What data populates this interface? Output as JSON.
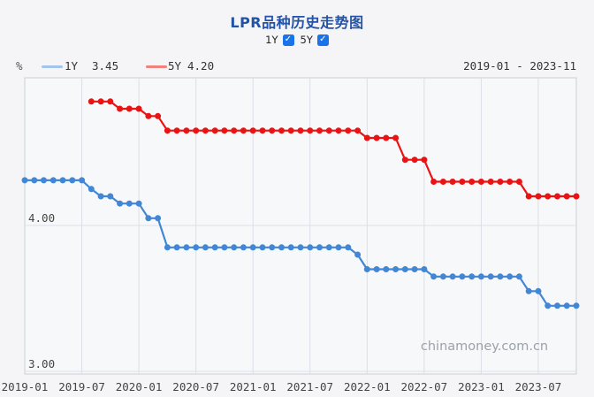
{
  "header": {
    "title": "LPR品种历史走势图",
    "toggles": [
      {
        "label": "1Y",
        "checked": true
      },
      {
        "label": "5Y",
        "checked": true
      }
    ],
    "check_glyph": "✓"
  },
  "legend": {
    "unit": "%",
    "items": [
      {
        "label": "1Y",
        "value": "3.45",
        "swatch_color": "#a4c4ea"
      },
      {
        "label": "5Y",
        "value": "4.20",
        "swatch_color": "#f0827e"
      }
    ],
    "range": "2019-01 - 2023-11"
  },
  "watermark": "chinamoney.com.cn",
  "colors": {
    "title_blue": "#2353a8",
    "checkbox_blue": "#1a73e8",
    "plot_bg": "#f7f8fa",
    "plot_border": "#c9ced6",
    "gridline": "#dbdfe6",
    "axis_text": "#444444",
    "watermark_gray": "#9ba1a9"
  },
  "chart_data": {
    "type": "line",
    "title": "LPR品种历史走势图",
    "ylabel": "%",
    "ylim": [
      2.95,
      5.02
    ],
    "grid": "vertical + yticks",
    "legend_position": "top",
    "x": [
      "2019-01",
      "2019-02",
      "2019-03",
      "2019-04",
      "2019-05",
      "2019-06",
      "2019-07",
      "2019-08",
      "2019-09",
      "2019-10",
      "2019-11",
      "2019-12",
      "2020-01",
      "2020-02",
      "2020-03",
      "2020-04",
      "2020-05",
      "2020-06",
      "2020-07",
      "2020-08",
      "2020-09",
      "2020-10",
      "2020-11",
      "2020-12",
      "2021-01",
      "2021-02",
      "2021-03",
      "2021-04",
      "2021-05",
      "2021-06",
      "2021-07",
      "2021-08",
      "2021-09",
      "2021-10",
      "2021-11",
      "2021-12",
      "2022-01",
      "2022-02",
      "2022-03",
      "2022-04",
      "2022-05",
      "2022-06",
      "2022-07",
      "2022-08",
      "2022-09",
      "2022-10",
      "2022-11",
      "2022-12",
      "2023-01",
      "2023-02",
      "2023-03",
      "2023-04",
      "2023-05",
      "2023-06",
      "2023-07",
      "2023-08",
      "2023-09",
      "2023-10",
      "2023-11"
    ],
    "xtick_indices": [
      0,
      6,
      12,
      18,
      24,
      30,
      36,
      42,
      48,
      54
    ],
    "yticks": [
      {
        "value": 4.0,
        "label": "4.00"
      },
      {
        "value": 3.0,
        "label": "3.00"
      }
    ],
    "series": [
      {
        "name": "1Y",
        "current": "3.45",
        "color": "#4286d6",
        "values": [
          4.31,
          4.31,
          4.31,
          4.31,
          4.31,
          4.31,
          4.31,
          4.25,
          4.2,
          4.2,
          4.15,
          4.15,
          4.15,
          4.05,
          4.05,
          3.85,
          3.85,
          3.85,
          3.85,
          3.85,
          3.85,
          3.85,
          3.85,
          3.85,
          3.85,
          3.85,
          3.85,
          3.85,
          3.85,
          3.85,
          3.85,
          3.85,
          3.85,
          3.85,
          3.85,
          3.8,
          3.7,
          3.7,
          3.7,
          3.7,
          3.7,
          3.7,
          3.7,
          3.65,
          3.65,
          3.65,
          3.65,
          3.65,
          3.65,
          3.65,
          3.65,
          3.65,
          3.65,
          3.55,
          3.55,
          3.45,
          3.45,
          3.45,
          3.45
        ]
      },
      {
        "name": "5Y",
        "current": "4.20",
        "color": "#ea1212",
        "values": [
          null,
          null,
          null,
          null,
          null,
          null,
          null,
          4.85,
          4.85,
          4.85,
          4.8,
          4.8,
          4.8,
          4.75,
          4.75,
          4.65,
          4.65,
          4.65,
          4.65,
          4.65,
          4.65,
          4.65,
          4.65,
          4.65,
          4.65,
          4.65,
          4.65,
          4.65,
          4.65,
          4.65,
          4.65,
          4.65,
          4.65,
          4.65,
          4.65,
          4.65,
          4.6,
          4.6,
          4.6,
          4.6,
          4.45,
          4.45,
          4.45,
          4.3,
          4.3,
          4.3,
          4.3,
          4.3,
          4.3,
          4.3,
          4.3,
          4.3,
          4.3,
          4.2,
          4.2,
          4.2,
          4.2,
          4.2,
          4.2
        ]
      }
    ]
  }
}
